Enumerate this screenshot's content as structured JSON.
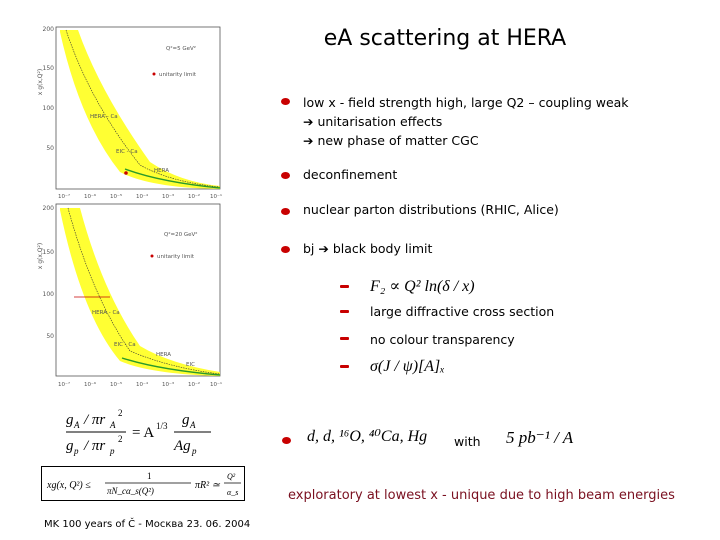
{
  "slide": {
    "title": "eA scattering at HERA",
    "bullets": [
      {
        "text": "low x - field strength high, large Q2 – coupling weak"
      },
      {
        "text": "deconfinement"
      },
      {
        "text": "nuclear parton distributions (RHIC, Alice)"
      },
      {
        "text": "bj ➔ black body limit"
      }
    ],
    "sub_points": [
      "➔ unitarisation effects",
      "➔ new phase of matter CGC"
    ],
    "dash_items": [
      {
        "text": "large diffractive cross section"
      },
      {
        "text": "no colour transparency"
      }
    ],
    "formula_f2": "F₂ ∝ Q² ln(δ / x)",
    "formula_sigma": "σ(J / ψ)[A]ₓ",
    "nuclei": "d, d, ¹⁶O, ⁴⁰Ca, Hg",
    "with": "with",
    "lumi": "5 pb⁻¹ / A",
    "bottom_note": "exploratory at lowest x - unique due to high beam energies",
    "footer": "MK 100 years of Č - Москва 23. 06. 2004"
  },
  "plots": {
    "top": {
      "ylabel": "x g(x,Q²)",
      "q2": "Q²=5 GeV²",
      "legend": "unitarity limit",
      "labels": [
        "HERA - Ca",
        "EIC - Ca",
        "HERA"
      ],
      "yticks": [
        "200",
        "150",
        "100",
        "50"
      ],
      "xticks": [
        "10⁻⁷",
        "10⁻⁶",
        "10⁻⁵",
        "10⁻⁴",
        "10⁻³",
        "10⁻²",
        "10⁻¹"
      ]
    },
    "bottom": {
      "ylabel": "x g(x,Q²)",
      "q2": "Q²=20 GeV²",
      "legend": "unitarity limit",
      "labels": [
        "HERA - Ca",
        "EIC - Ca",
        "HERA",
        "EIC"
      ],
      "yticks": [
        "200",
        "150",
        "100",
        "50"
      ],
      "xticks": [
        "10⁻⁷",
        "10⁻⁶",
        "10⁻⁵",
        "10⁻⁴",
        "10⁻³",
        "10⁻²",
        "10⁻¹"
      ]
    }
  },
  "colors": {
    "bullet": "#c80000",
    "band": "#ffff33",
    "curve": "#2a9a2a",
    "note": "#7a1020"
  }
}
